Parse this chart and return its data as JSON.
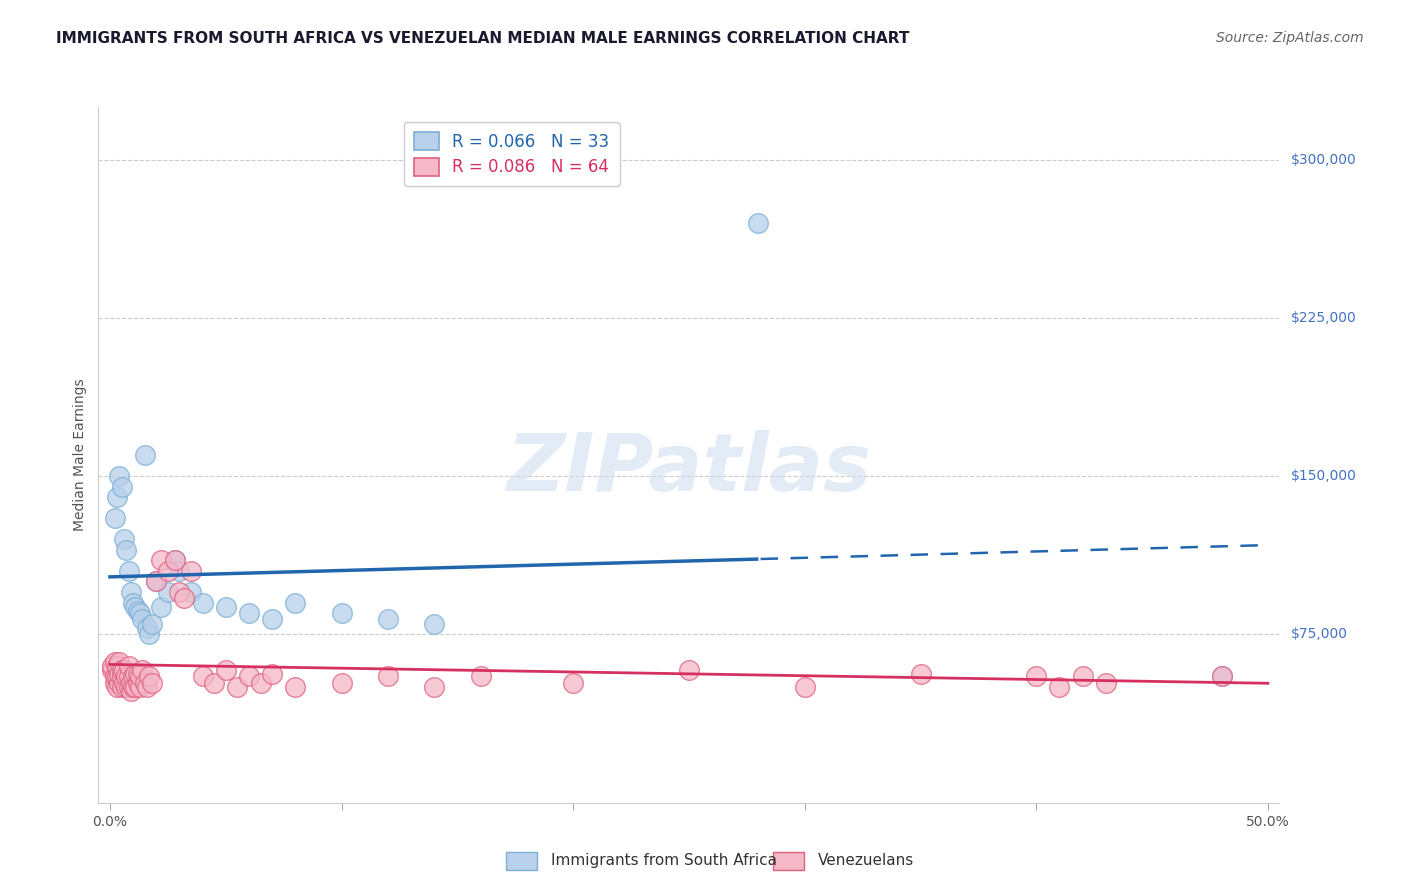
{
  "title": "IMMIGRANTS FROM SOUTH AFRICA VS VENEZUELAN MEDIAN MALE EARNINGS CORRELATION CHART",
  "source": "Source: ZipAtlas.com",
  "ylabel": "Median Male Earnings",
  "background_color": "#ffffff",
  "xlim": [
    -0.005,
    0.505
  ],
  "ylim": [
    -5000,
    325000
  ],
  "ytick_values": [
    75000,
    150000,
    225000,
    300000
  ],
  "ytick_labels": [
    "$75,000",
    "$150,000",
    "$225,000",
    "$300,000"
  ],
  "xtick_values": [
    0.0,
    0.1,
    0.2,
    0.3,
    0.4,
    0.5
  ],
  "xtick_labels_show": [
    "0.0%",
    "",
    "",
    "",
    "",
    "50.0%"
  ],
  "grid_color": "#cccccc",
  "watermark_text": "ZIPatlas",
  "series": [
    {
      "name": "Immigrants from South Africa",
      "R": 0.066,
      "N": 33,
      "color": "#b8d0ea",
      "edge_color": "#7bafd4",
      "trend_color": "#2166ac",
      "has_dashed": true,
      "x": [
        0.002,
        0.003,
        0.004,
        0.005,
        0.006,
        0.007,
        0.008,
        0.009,
        0.01,
        0.011,
        0.012,
        0.013,
        0.014,
        0.015,
        0.016,
        0.017,
        0.018,
        0.02,
        0.022,
        0.025,
        0.028,
        0.03,
        0.035,
        0.04,
        0.05,
        0.06,
        0.07,
        0.08,
        0.1,
        0.12,
        0.14,
        0.28,
        0.48
      ],
      "y": [
        130000,
        140000,
        150000,
        145000,
        120000,
        115000,
        105000,
        95000,
        90000,
        88000,
        86000,
        85000,
        82000,
        160000,
        78000,
        75000,
        80000,
        100000,
        88000,
        95000,
        110000,
        105000,
        95000,
        90000,
        88000,
        85000,
        82000,
        90000,
        85000,
        82000,
        80000,
        270000,
        55000
      ]
    },
    {
      "name": "Venezuelans",
      "R": 0.086,
      "N": 64,
      "color": "#f5b8c8",
      "edge_color": "#e06080",
      "trend_color": "#d63060",
      "has_dashed": false,
      "x": [
        0.001,
        0.001,
        0.002,
        0.002,
        0.002,
        0.003,
        0.003,
        0.003,
        0.004,
        0.004,
        0.004,
        0.005,
        0.005,
        0.005,
        0.006,
        0.006,
        0.007,
        0.007,
        0.008,
        0.008,
        0.008,
        0.009,
        0.009,
        0.01,
        0.01,
        0.011,
        0.011,
        0.012,
        0.012,
        0.013,
        0.013,
        0.014,
        0.015,
        0.016,
        0.017,
        0.018,
        0.02,
        0.022,
        0.025,
        0.028,
        0.03,
        0.032,
        0.035,
        0.04,
        0.045,
        0.05,
        0.055,
        0.06,
        0.065,
        0.07,
        0.08,
        0.1,
        0.12,
        0.14,
        0.16,
        0.2,
        0.25,
        0.3,
        0.35,
        0.4,
        0.41,
        0.42,
        0.43,
        0.48
      ],
      "y": [
        58000,
        60000,
        52000,
        55000,
        62000,
        50000,
        55000,
        60000,
        52000,
        56000,
        62000,
        50000,
        55000,
        58000,
        52000,
        58000,
        50000,
        55000,
        50000,
        55000,
        60000,
        48000,
        52000,
        50000,
        55000,
        56000,
        50000,
        52000,
        56000,
        50000,
        55000,
        58000,
        52000,
        50000,
        55000,
        52000,
        100000,
        110000,
        105000,
        110000,
        95000,
        92000,
        105000,
        55000,
        52000,
        58000,
        50000,
        55000,
        52000,
        56000,
        50000,
        52000,
        55000,
        50000,
        55000,
        52000,
        58000,
        50000,
        56000,
        55000,
        50000,
        55000,
        52000,
        55000
      ]
    }
  ],
  "title_fontsize": 11,
  "axis_label_fontsize": 10,
  "tick_fontsize": 10,
  "legend_fontsize": 12,
  "source_fontsize": 10
}
